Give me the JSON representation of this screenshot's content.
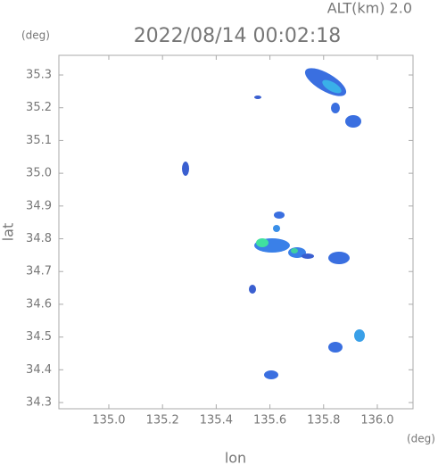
{
  "chart_data": {
    "type": "radar-map",
    "title": "2022/08/14 00:02:18",
    "altitude_label": "ALT(km)  2.0",
    "y_unit": "(deg)",
    "x_unit": "(deg)",
    "x_label": "lon",
    "y_label": "lat",
    "xlim": [
      134.814,
      136.133
    ],
    "ylim": [
      34.281,
      35.36
    ],
    "xticks": [
      {
        "value": 135.0,
        "label": "135.0"
      },
      135.2,
      135.4,
      135.6,
      135.8,
      {
        "value": 136.0,
        "label": "136.0"
      }
    ],
    "yticks": [
      34.3,
      34.4,
      34.5,
      34.6,
      34.7,
      34.8,
      34.9,
      {
        "value": 35.0,
        "label": "35.0"
      },
      35.1,
      35.2,
      35.3
    ]
  }
}
